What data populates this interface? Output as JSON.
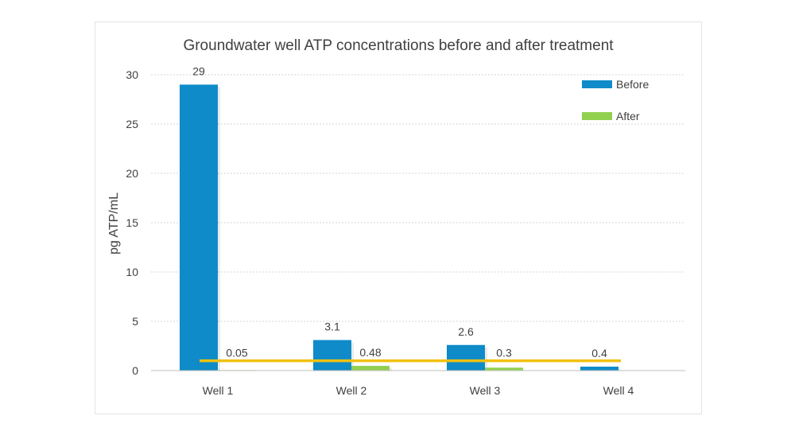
{
  "chart_data": {
    "type": "bar",
    "title": "Groundwater well ATP concentrations before and after treatment",
    "xlabel": "",
    "ylabel": "pg ATP/mL",
    "ylim": [
      0,
      30
    ],
    "yticks": [
      0,
      5,
      10,
      15,
      20,
      25,
      30
    ],
    "grid": true,
    "legend_position": "top-right",
    "categories": [
      "Well 1",
      "Well 2",
      "Well 3",
      "Well 4"
    ],
    "series": [
      {
        "name": "Before",
        "color": "#0e8bc8",
        "values": [
          29,
          3.1,
          2.6,
          0.4
        ],
        "labels": [
          "29",
          "3.1",
          "2.6",
          "0.4"
        ]
      },
      {
        "name": "After",
        "color": "#92d050",
        "values": [
          0.05,
          0.48,
          0.3,
          null
        ],
        "labels": [
          "0.05",
          "0.48",
          "0.3",
          ""
        ]
      }
    ],
    "reference_line": {
      "value": 1,
      "color": "#f2c10e"
    }
  }
}
